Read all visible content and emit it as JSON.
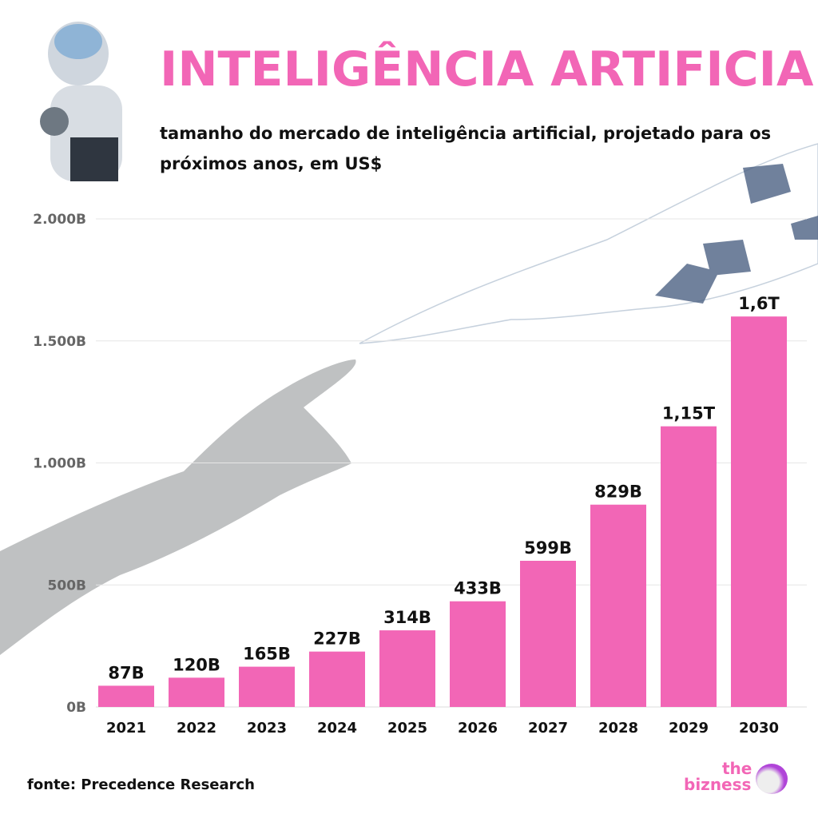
{
  "header": {
    "title": "INTELIGÊNCIA ARTIFICIAL",
    "subtitle": "tamanho do mercado de inteligência artificial, projetado para os próximos anos, em US$"
  },
  "footer": {
    "source": "fonte: Precedence Research",
    "logo_the": "the",
    "logo_bizness": "bizness"
  },
  "colors": {
    "bar": "#f266b6",
    "title": "#f266b6",
    "axis_text": "#666666",
    "grid": "#e6e6e6"
  },
  "icons": [
    "robot-image",
    "human-hand-image",
    "digital-hand-image",
    "unicorn-logo-icon"
  ],
  "chart_data": {
    "type": "bar",
    "categories": [
      "2021",
      "2022",
      "2023",
      "2024",
      "2025",
      "2026",
      "2027",
      "2028",
      "2029",
      "2030"
    ],
    "values": [
      87,
      120,
      165,
      227,
      314,
      433,
      599,
      829,
      1150,
      1600
    ],
    "data_labels": [
      "87B",
      "120B",
      "165B",
      "227B",
      "314B",
      "433B",
      "599B",
      "829B",
      "1,15T",
      "1,6T"
    ],
    "y_ticks": [
      0,
      500,
      1000,
      1500,
      2000
    ],
    "y_tick_labels": [
      "0B",
      "500B",
      "1.000B",
      "1.500B",
      "2.000B"
    ],
    "ylim": [
      0,
      2000
    ],
    "grid": true,
    "unit": "US$ billions"
  }
}
